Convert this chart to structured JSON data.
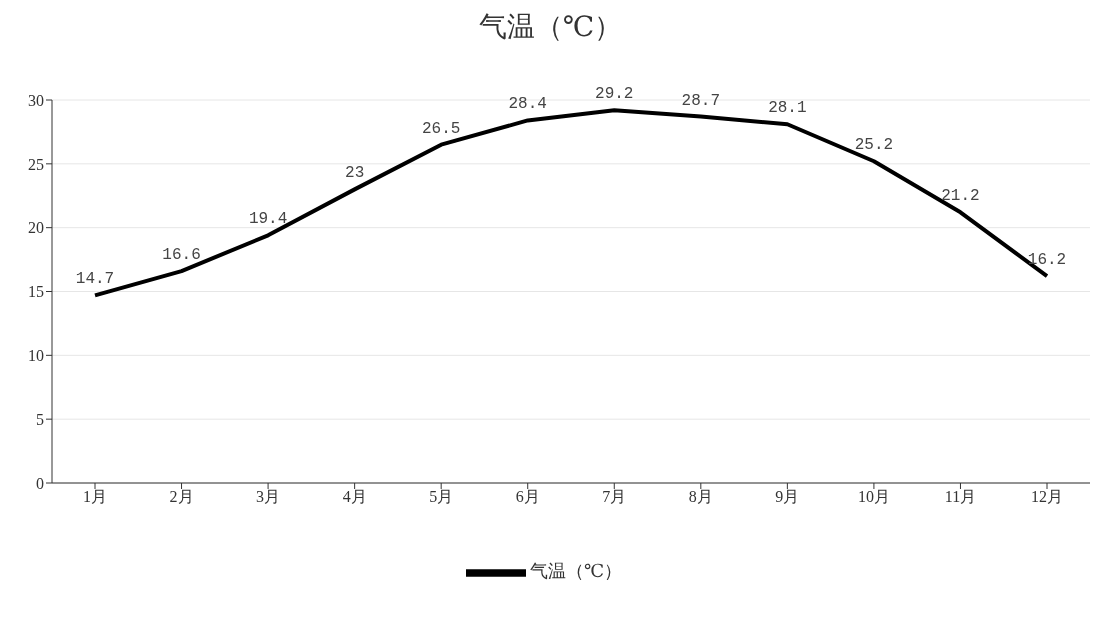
{
  "chart_data": {
    "type": "line",
    "title": "气温（℃）",
    "categories": [
      "1月",
      "2月",
      "3月",
      "4月",
      "5月",
      "6月",
      "7月",
      "8月",
      "9月",
      "10月",
      "11月",
      "12月"
    ],
    "series": [
      {
        "name": "气温（℃）",
        "color": "#000000",
        "values": [
          14.7,
          16.6,
          19.4,
          23,
          26.5,
          28.4,
          29.2,
          28.7,
          28.1,
          25.2,
          21.2,
          16.2
        ]
      }
    ],
    "ylim": [
      0,
      30
    ],
    "yticks": [
      0,
      5,
      10,
      15,
      20,
      25,
      30
    ],
    "grid": "y",
    "legend": "bottom",
    "data_labels": true,
    "marker": "none"
  }
}
